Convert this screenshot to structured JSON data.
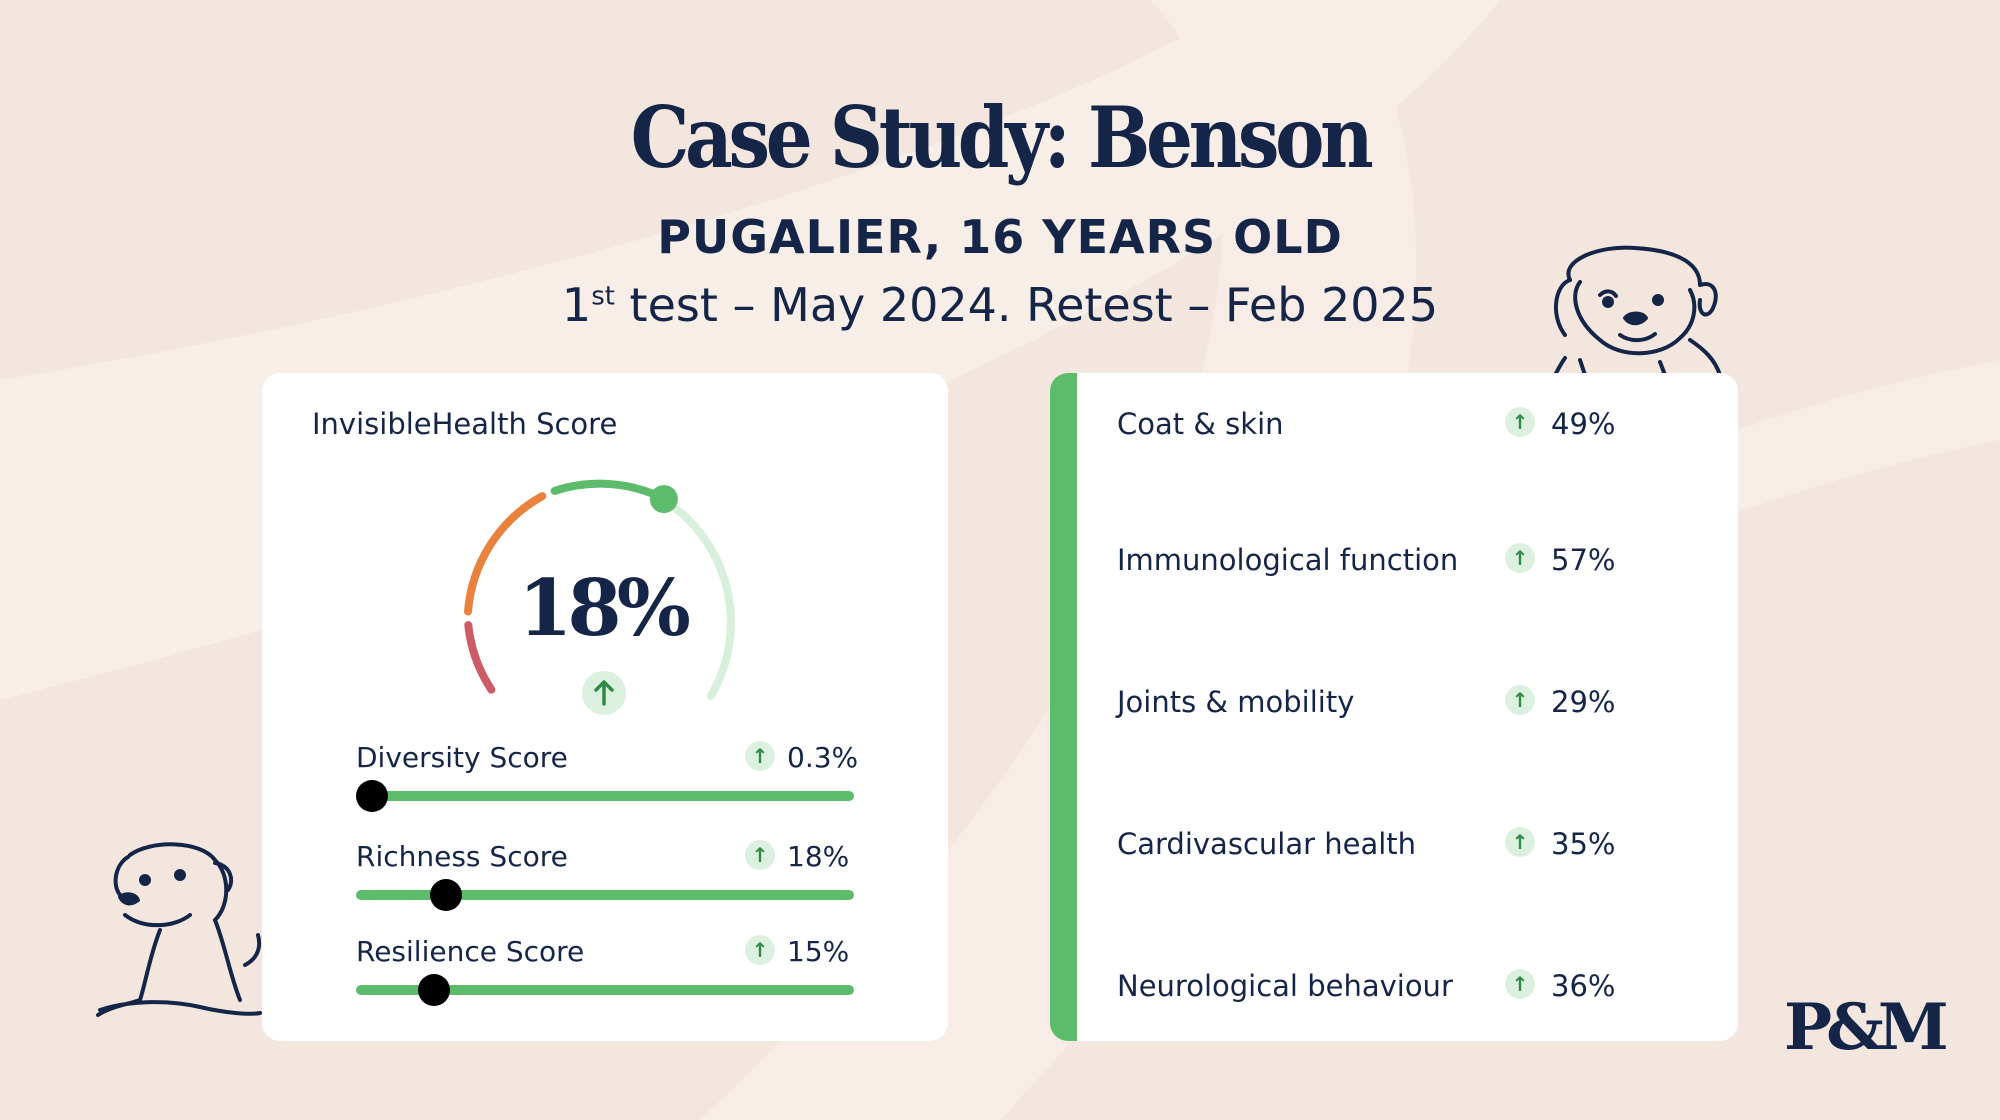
{
  "header": {
    "title": "Case Study: Benson",
    "subtitle": "PUGALIER, 16 YEARS OLD",
    "dates_ordinal_num": "1",
    "dates_ordinal_sup": "st",
    "dates_rest": " test – May 2024. Retest – Feb 2025"
  },
  "left_card": {
    "title": "InvisibleHealth Score",
    "gauge": {
      "value": "18%",
      "value_fraction": 0.18,
      "trend_icon": "arrow-up-icon",
      "colors": [
        "#cd5b66",
        "#e9823c",
        "#5cbc6c",
        "#d8efdb"
      ]
    },
    "metrics": [
      {
        "label": "Diversity Score",
        "value": "0.3%",
        "trend_icon": "arrow-up-icon",
        "level": 0.003
      },
      {
        "label": "Richness Score",
        "value": "18%",
        "trend_icon": "arrow-up-icon",
        "level": 0.18
      },
      {
        "label": "Resilience Score",
        "value": "15%",
        "trend_icon": "arrow-up-icon",
        "level": 0.15
      }
    ]
  },
  "right_card": {
    "accent_color": "#5cbc6c",
    "categories": [
      {
        "label": "Coat & skin",
        "value": "49%",
        "trend_icon": "arrow-up-icon"
      },
      {
        "label": "Immunological function",
        "value": "57%",
        "trend_icon": "arrow-up-icon"
      },
      {
        "label": "Joints & mobility",
        "value": "29%",
        "trend_icon": "arrow-up-icon"
      },
      {
        "label": "Cardivascular health",
        "value": "35%",
        "trend_icon": "arrow-up-icon"
      },
      {
        "label": "Neurological behaviour",
        "value": "36%",
        "trend_icon": "arrow-up-icon"
      }
    ]
  },
  "brand": {
    "logo": "P&M"
  },
  "colors": {
    "navy": "#152548",
    "background": "#f3e6de",
    "green": "#5cbc6c"
  }
}
